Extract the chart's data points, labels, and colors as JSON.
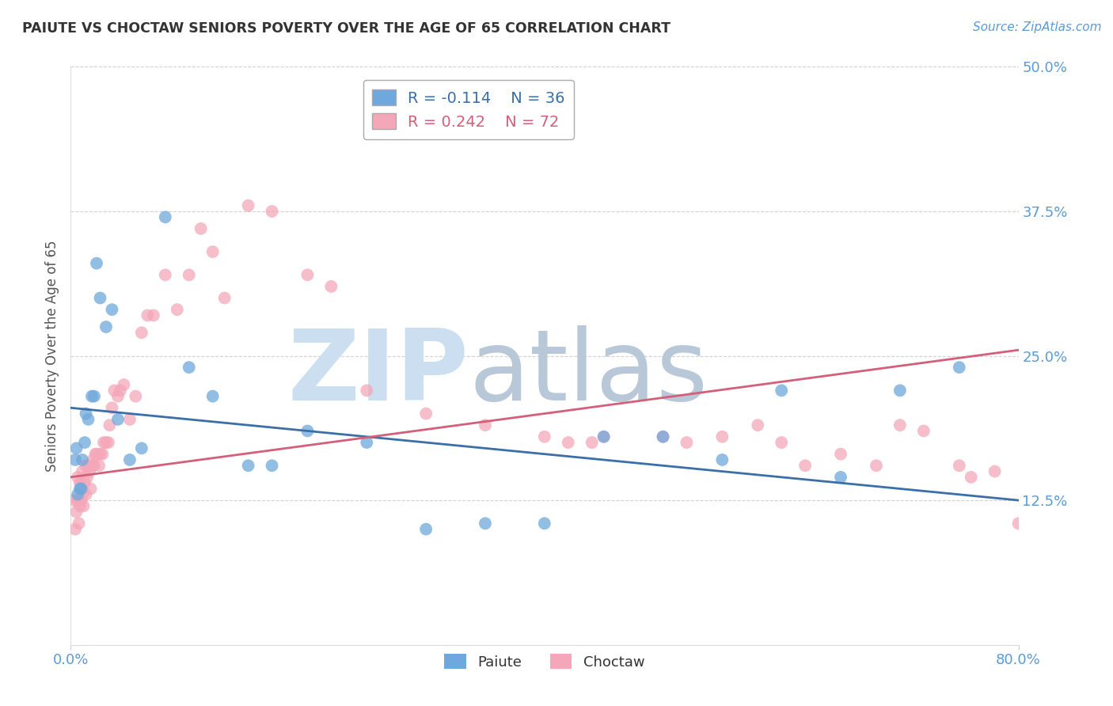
{
  "title": "PAIUTE VS CHOCTAW SENIORS POVERTY OVER THE AGE OF 65 CORRELATION CHART",
  "source": "Source: ZipAtlas.com",
  "ylabel": "Seniors Poverty Over the Age of 65",
  "xlim": [
    0.0,
    0.8
  ],
  "ylim": [
    0.0,
    0.5
  ],
  "yticks": [
    0.0,
    0.125,
    0.25,
    0.375,
    0.5
  ],
  "ytick_labels": [
    "",
    "12.5%",
    "25.0%",
    "37.5%",
    "50.0%"
  ],
  "xticks": [
    0.0,
    0.8
  ],
  "xtick_labels": [
    "0.0%",
    "80.0%"
  ],
  "paiute_color": "#6fa8dc",
  "choctaw_color": "#f4a7b9",
  "paiute_line_color": "#3a6fa8",
  "choctaw_line_color": "#d45f7a",
  "legend_R_paiute": "R = -0.114",
  "legend_N_paiute": "N = 36",
  "legend_R_choctaw": "R = 0.242",
  "legend_N_choctaw": "N = 72",
  "paiute_x": [
    0.004,
    0.005,
    0.006,
    0.008,
    0.009,
    0.01,
    0.012,
    0.013,
    0.015,
    0.018,
    0.02,
    0.022,
    0.025,
    0.03,
    0.035,
    0.04,
    0.05,
    0.06,
    0.08,
    0.1,
    0.12,
    0.15,
    0.17,
    0.2,
    0.25,
    0.3,
    0.35,
    0.4,
    0.45,
    0.5,
    0.55,
    0.6,
    0.65,
    0.7,
    0.75,
    0.3
  ],
  "paiute_y": [
    0.16,
    0.17,
    0.13,
    0.135,
    0.135,
    0.16,
    0.175,
    0.2,
    0.195,
    0.215,
    0.215,
    0.33,
    0.3,
    0.275,
    0.29,
    0.195,
    0.16,
    0.17,
    0.37,
    0.24,
    0.215,
    0.155,
    0.155,
    0.185,
    0.175,
    0.1,
    0.105,
    0.105,
    0.18,
    0.18,
    0.16,
    0.22,
    0.145,
    0.22,
    0.24,
    0.455
  ],
  "choctaw_x": [
    0.003,
    0.004,
    0.005,
    0.006,
    0.006,
    0.007,
    0.008,
    0.008,
    0.009,
    0.01,
    0.01,
    0.011,
    0.012,
    0.013,
    0.013,
    0.014,
    0.015,
    0.016,
    0.017,
    0.018,
    0.019,
    0.02,
    0.021,
    0.022,
    0.024,
    0.025,
    0.027,
    0.028,
    0.03,
    0.032,
    0.033,
    0.035,
    0.037,
    0.04,
    0.042,
    0.045,
    0.05,
    0.055,
    0.06,
    0.065,
    0.07,
    0.08,
    0.09,
    0.1,
    0.11,
    0.12,
    0.13,
    0.15,
    0.17,
    0.2,
    0.22,
    0.25,
    0.3,
    0.35,
    0.4,
    0.42,
    0.44,
    0.45,
    0.5,
    0.52,
    0.55,
    0.58,
    0.6,
    0.62,
    0.65,
    0.68,
    0.7,
    0.72,
    0.75,
    0.76,
    0.78,
    0.8
  ],
  "choctaw_y": [
    0.125,
    0.1,
    0.115,
    0.125,
    0.145,
    0.105,
    0.12,
    0.14,
    0.125,
    0.13,
    0.15,
    0.12,
    0.14,
    0.13,
    0.155,
    0.145,
    0.155,
    0.15,
    0.135,
    0.155,
    0.16,
    0.155,
    0.165,
    0.165,
    0.155,
    0.165,
    0.165,
    0.175,
    0.175,
    0.175,
    0.19,
    0.205,
    0.22,
    0.215,
    0.22,
    0.225,
    0.195,
    0.215,
    0.27,
    0.285,
    0.285,
    0.32,
    0.29,
    0.32,
    0.36,
    0.34,
    0.3,
    0.38,
    0.375,
    0.32,
    0.31,
    0.22,
    0.2,
    0.19,
    0.18,
    0.175,
    0.175,
    0.18,
    0.18,
    0.175,
    0.18,
    0.19,
    0.175,
    0.155,
    0.165,
    0.155,
    0.19,
    0.185,
    0.155,
    0.145,
    0.15,
    0.105
  ],
  "paiute_line_start_y": 0.205,
  "paiute_line_end_y": 0.125,
  "choctaw_line_start_y": 0.145,
  "choctaw_line_end_y": 0.255,
  "background_color": "#ffffff",
  "grid_color": "#cccccc",
  "title_color": "#333333",
  "axis_label_color": "#555555",
  "tick_label_color": "#5b9bd5",
  "watermark_zip": "ZIP",
  "watermark_atlas": "atlas",
  "watermark_color_zip": "#ccdff0",
  "watermark_color_atlas": "#b8c8d8"
}
